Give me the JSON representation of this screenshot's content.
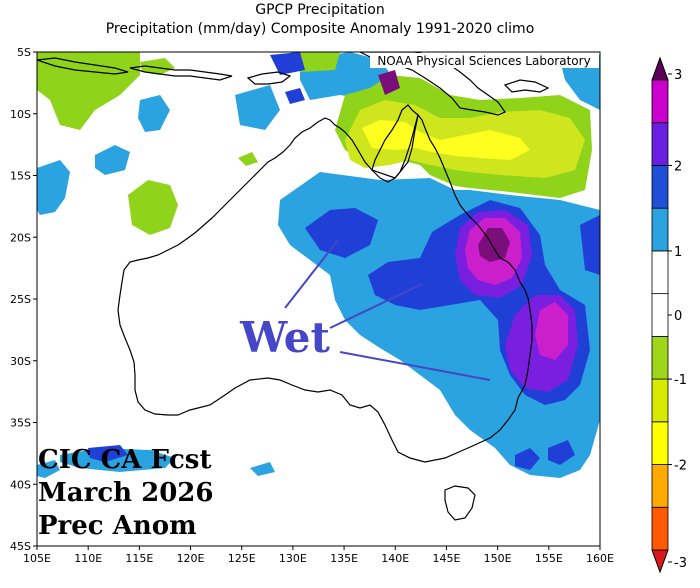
{
  "title": "GPCP Precipitation",
  "subtitle": "Precipitation (mm/day) Composite Anomaly 1991-2020 climo",
  "credit": "NOAA Physical Sciences Laboratory",
  "annotation_wet": "Wet",
  "forecast_label": [
    "CIC CA Fcst",
    "March 2026",
    "Prec Anom"
  ],
  "lat_labels": [
    "5S",
    "10S",
    "15S",
    "20S",
    "25S",
    "30S",
    "35S",
    "40S",
    "45S"
  ],
  "lon_labels": [
    "105E",
    "110E",
    "115E",
    "120E",
    "125E",
    "130E",
    "135E",
    "140E",
    "145E",
    "150E",
    "155E",
    "160E"
  ],
  "colorbar": {
    "tick_labels": [
      "-3",
      "-2",
      "-1",
      "0",
      "1",
      "2",
      "3"
    ],
    "colors": {
      "below_min": "#d7191c",
      "n3": "#ff5a00",
      "n2": "#ffaa00",
      "n1": "#ffff00",
      "n05": "#d6eb00",
      "n0": "#9fd61a",
      "zero": "#ffffff",
      "p05": "#2ba3e0",
      "p1": "#1f4fd6",
      "p2": "#6a1fe0",
      "p25": "#cc00cc",
      "above_max": "#5c005c"
    }
  },
  "anomaly_colors": {
    "green": "#8fd41a",
    "yellowgreen": "#cfe61f",
    "yellow": "#ffff1f",
    "lightblue": "#2ba3e0",
    "blue": "#1f3fd6",
    "purple": "#7a1fe0",
    "magenta": "#cc1fcc",
    "darkpurple": "#7a0f7a",
    "annotation": "#4646c8"
  }
}
